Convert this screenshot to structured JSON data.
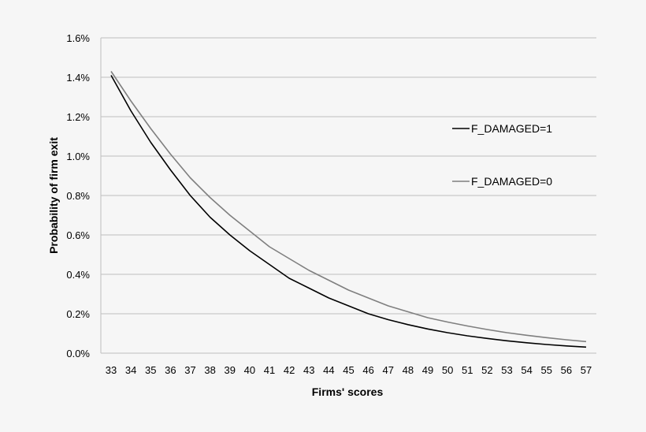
{
  "chart_data": {
    "type": "line",
    "title": "",
    "xlabel": "Firms' scores",
    "ylabel": "Probability of firm exit",
    "x": [
      33,
      34,
      35,
      36,
      37,
      38,
      39,
      40,
      41,
      42,
      43,
      44,
      45,
      46,
      47,
      48,
      49,
      50,
      51,
      52,
      53,
      54,
      55,
      56,
      57
    ],
    "x_tick_labels": [
      "33",
      "34",
      "35",
      "36",
      "37",
      "38",
      "39",
      "40",
      "41",
      "42",
      "43",
      "44",
      "45",
      "46",
      "47",
      "48",
      "49",
      "50",
      "51",
      "52",
      "53",
      "54",
      "55",
      "56",
      "57"
    ],
    "ylim": [
      0,
      0.016
    ],
    "y_ticks": [
      0,
      0.002,
      0.004,
      0.006,
      0.008,
      0.01,
      0.012,
      0.014,
      0.016
    ],
    "y_tick_labels": [
      "0.0%",
      "0.2%",
      "0.4%",
      "0.6%",
      "0.8%",
      "1.0%",
      "1.2%",
      "1.4%",
      "1.6%"
    ],
    "grid": "horizontal",
    "legend_position": "right",
    "series": [
      {
        "name": "F_DAMAGED=1",
        "color": "#000000",
        "values": [
          0.0141,
          0.0123,
          0.0107,
          0.0093,
          0.008,
          0.0069,
          0.006,
          0.0052,
          0.0045,
          0.0038,
          0.0033,
          0.0028,
          0.0024,
          0.002,
          0.0017,
          0.00145,
          0.00123,
          0.00104,
          0.00088,
          0.00075,
          0.00063,
          0.00053,
          0.00044,
          0.00037,
          0.00031
        ]
      },
      {
        "name": "F_DAMAGED=0",
        "color": "#7f7f7f",
        "values": [
          0.0143,
          0.0128,
          0.0114,
          0.0101,
          0.0089,
          0.0079,
          0.007,
          0.0062,
          0.0054,
          0.0048,
          0.0042,
          0.0037,
          0.0032,
          0.0028,
          0.0024,
          0.0021,
          0.0018,
          0.00158,
          0.00138,
          0.0012,
          0.00104,
          0.00091,
          0.00079,
          0.00068,
          0.00059
        ]
      }
    ]
  }
}
